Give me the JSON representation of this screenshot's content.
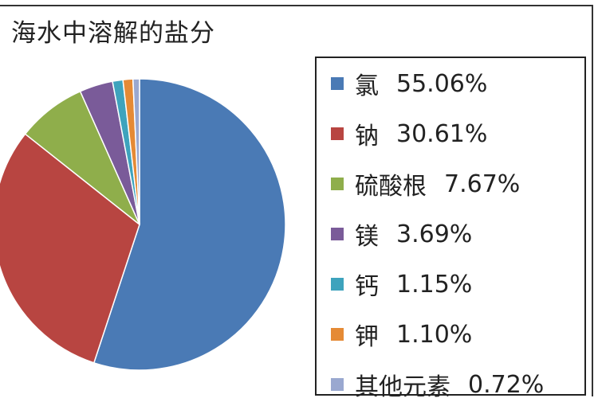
{
  "chart_data": {
    "type": "pie",
    "title": "海水中溶解的盐分",
    "legend_position": "right",
    "slices": [
      {
        "label": "氯",
        "value": 55.06,
        "display": "55.06%",
        "color": "#4a7ab5"
      },
      {
        "label": "钠",
        "value": 30.61,
        "display": "30.61%",
        "color": "#b84541"
      },
      {
        "label": "硫酸根",
        "value": 7.67,
        "display": "7.67%",
        "color": "#8fae4b"
      },
      {
        "label": "镁",
        "value": 3.69,
        "display": "3.69%",
        "color": "#7a5b99"
      },
      {
        "label": "钙",
        "value": 1.15,
        "display": "1.15%",
        "color": "#3ea3bd"
      },
      {
        "label": "钾",
        "value": 1.1,
        "display": "1.10%",
        "color": "#e58a35"
      },
      {
        "label": "其他元素",
        "value": 0.72,
        "display": "0.72%",
        "color": "#9aa8d0"
      }
    ]
  }
}
